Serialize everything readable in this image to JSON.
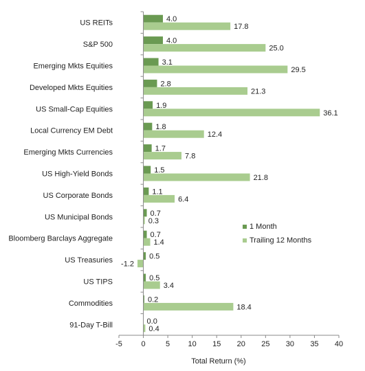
{
  "chart_data": {
    "type": "bar",
    "orientation": "horizontal",
    "categories": [
      "US REITs",
      "S&P 500",
      "Emerging Mkts Equities",
      "Developed Mkts Equities",
      "US Small-Cap Equities",
      "Local Currency EM Debt",
      "Emerging Mkts Currencies",
      "US High-Yield Bonds",
      "US Corporate Bonds",
      "US Municipal Bonds",
      "Bloomberg Barclays Aggregate",
      "US Treasuries",
      "US TIPS",
      "Commodities",
      "91-Day T-Bill"
    ],
    "series": [
      {
        "name": "1 Month",
        "color": "#6a9a52",
        "values": [
          4.0,
          4.0,
          3.1,
          2.8,
          1.9,
          1.8,
          1.7,
          1.5,
          1.1,
          0.7,
          0.7,
          0.5,
          0.5,
          0.2,
          0.0
        ]
      },
      {
        "name": "Trailing 12 Months",
        "color": "#a9cc8f",
        "values": [
          17.8,
          25.0,
          29.5,
          21.3,
          36.1,
          12.4,
          7.8,
          21.8,
          6.4,
          0.3,
          1.4,
          -1.2,
          3.4,
          18.4,
          0.4
        ]
      }
    ],
    "xlabel": "Total Return (%)",
    "xlim": [
      -5,
      40
    ],
    "xticks": [
      -5,
      0,
      5,
      10,
      15,
      20,
      25,
      30,
      35,
      40
    ],
    "grid": false,
    "legend_position": "right-middle"
  }
}
